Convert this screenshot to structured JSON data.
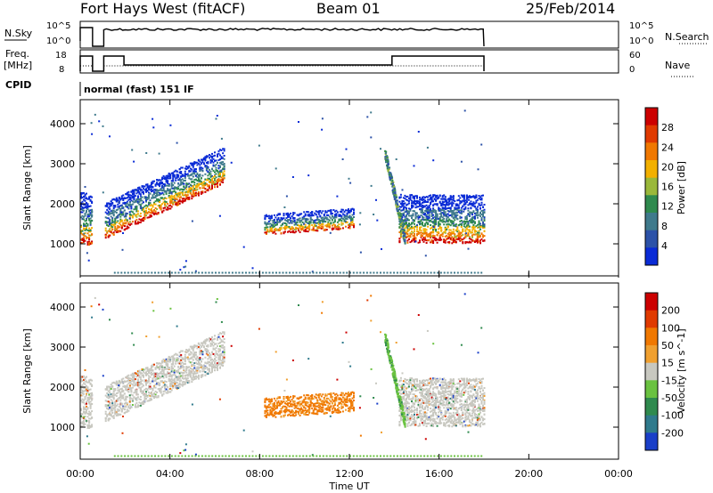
{
  "header": {
    "station": "Fort Hays West (fitACF)",
    "beam": "Beam 01",
    "date": "25/Feb/2014"
  },
  "strips": {
    "noise_sky_label": "N.Sky",
    "noise_search_label": "N.Search",
    "freq_label_1": "Freq.",
    "freq_label_2": "[MHz]",
    "nave_label": "Nave",
    "cpid_label": "CPID",
    "cpid_text": "normal (fast) 151 IF",
    "noise_ticks_left": [
      "10^5",
      "10^0"
    ],
    "noise_ticks_right": [
      "10^5",
      "10^0"
    ],
    "freq_ticks": [
      "18",
      "8"
    ],
    "nave_ticks": [
      "60",
      "0"
    ]
  },
  "chart_data": [
    {
      "type": "heatmap",
      "name": "Power",
      "ylabel": "Slant Range [km]",
      "xlabel": "Time UT",
      "yticks": [
        "1000",
        "2000",
        "3000",
        "4000"
      ],
      "xticks": [
        "00:00",
        "04:00",
        "08:00",
        "12:00",
        "16:00",
        "20:00",
        "00:00"
      ],
      "colorbar_label": "Power [dB]",
      "colorbar_ticks": [
        "4",
        "8",
        "12",
        "16",
        "20",
        "24",
        "28"
      ],
      "colorbar_colors": [
        "#0a2bd6",
        "#2c52a8",
        "#3f7a8c",
        "#2f8a4e",
        "#9ab83a",
        "#f2b000",
        "#f07800",
        "#e03a00",
        "#cc0000"
      ],
      "ylim": [
        200,
        4600
      ],
      "xlim_hours": [
        0,
        24
      ],
      "features": [
        {
          "t0": 0.0,
          "t1": 0.5,
          "r0": 950,
          "r1": 2300,
          "level": "mixed"
        },
        {
          "t0": 1.1,
          "t1": 6.4,
          "r0": 1100,
          "r1": 3200,
          "level": "band"
        },
        {
          "t0": 8.2,
          "t1": 12.2,
          "r0": 1250,
          "r1": 1800,
          "level": "patch"
        },
        {
          "t0": 13.8,
          "t1": 18.0,
          "r0": 1000,
          "r1": 2300,
          "level": "band"
        }
      ]
    },
    {
      "type": "heatmap",
      "name": "Velocity",
      "ylabel": "Slant Range [km]",
      "xlabel": "Time UT",
      "yticks": [
        "1000",
        "2000",
        "3000",
        "4000"
      ],
      "xticks": [
        "00:00",
        "04:00",
        "08:00",
        "12:00",
        "16:00",
        "20:00",
        "00:00"
      ],
      "colorbar_label": "Velocity [m s^-1]",
      "colorbar_ticks": [
        "200",
        "100",
        "50",
        "15",
        "-15",
        "-50",
        "-100",
        "-200"
      ],
      "colorbar_colors": [
        "#1a3fc8",
        "#2f7a8c",
        "#2f8a4e",
        "#6ac240",
        "#c8c8c0",
        "#f0a030",
        "#f07800",
        "#e03a00",
        "#cc0000"
      ],
      "ylim": [
        200,
        4600
      ],
      "xlim_hours": [
        0,
        24
      ]
    }
  ],
  "axis": {
    "x_ticks": [
      "00:00",
      "04:00",
      "08:00",
      "12:00",
      "16:00",
      "20:00",
      "00:00"
    ],
    "x_label": "Time UT"
  }
}
